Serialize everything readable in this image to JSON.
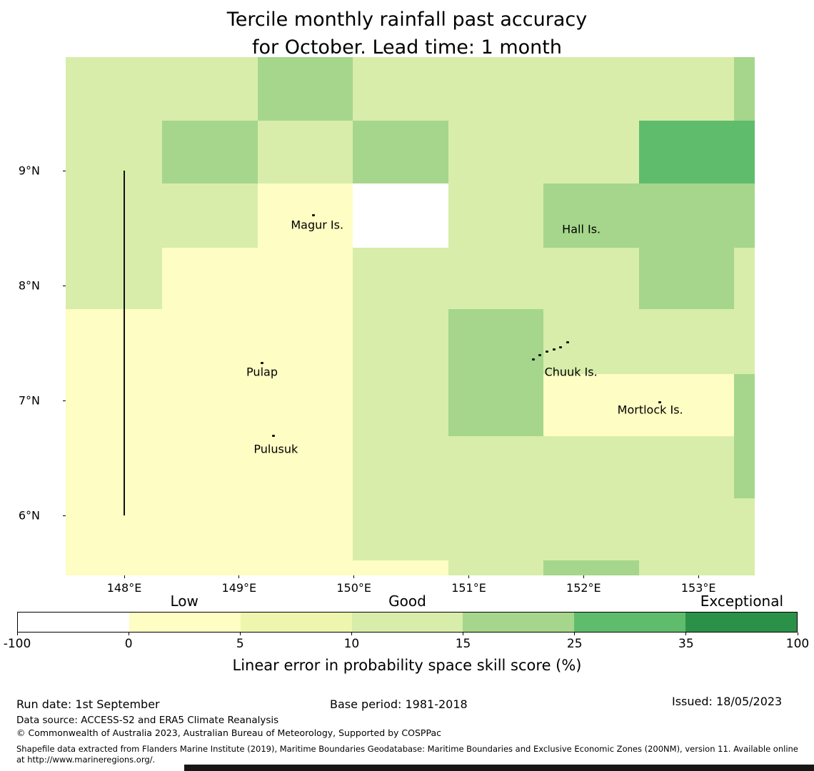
{
  "title": {
    "line1": "Tercile monthly rainfall past accuracy",
    "line2": "for October. Lead time: 1 month"
  },
  "chart_data": {
    "type": "heatmap",
    "x_axis": {
      "range": [
        147.49,
        153.49
      ],
      "tick_values": [
        148,
        149,
        150,
        151,
        152,
        153
      ],
      "tick_labels": [
        "148°E",
        "149°E",
        "150°E",
        "151°E",
        "152°E",
        "153°E"
      ]
    },
    "y_axis": {
      "range": [
        5.48,
        9.99
      ],
      "tick_values": [
        9,
        8,
        7,
        6
      ],
      "tick_labels": [
        "9°N",
        "8°N",
        "7°N",
        "6°N"
      ]
    },
    "palette": {
      "w": "#ffffff",
      "y": "#fefdc3",
      "yg": "#eef6ae",
      "lg": "#d8edaa",
      "mg": "#a5d68b",
      "g": "#5fbc6c",
      "dg": "#2b9148"
    },
    "category_values": {
      "w": "-100 to 0",
      "y": "0 to 5",
      "yg": "5 to 10",
      "lg": "10 to 15",
      "mg": "15 to 25",
      "g": "25 to 35",
      "dg": "35 to 100"
    },
    "lon_edges": [
      147.49,
      148.33,
      149.16,
      149.99,
      150.82,
      151.65,
      152.48,
      153.31,
      153.49
    ],
    "lat_edges": [
      9.99,
      9.44,
      8.89,
      8.33,
      7.8,
      7.23,
      6.69,
      6.15,
      5.61,
      5.48
    ],
    "grid": [
      [
        "lg",
        "lg",
        "mg",
        "lg",
        "lg",
        "lg",
        "lg",
        "mg"
      ],
      [
        "lg",
        "mg",
        "lg",
        "mg",
        "lg",
        "lg",
        "g",
        "g"
      ],
      [
        "lg",
        "lg",
        "y",
        "w",
        "lg",
        "mg",
        "mg",
        "mg"
      ],
      [
        "lg",
        "y",
        "y",
        "lg",
        "lg",
        "lg",
        "mg",
        "lg"
      ],
      [
        "y",
        "y",
        "y",
        "lg",
        "mg",
        "lg",
        "lg",
        "lg"
      ],
      [
        "y",
        "y",
        "y",
        "lg",
        "mg",
        "y",
        "y",
        "mg"
      ],
      [
        "y",
        "y",
        "y",
        "lg",
        "lg",
        "lg",
        "lg",
        "mg"
      ],
      [
        "y",
        "y",
        "y",
        "lg",
        "lg",
        "lg",
        "lg",
        "lg"
      ],
      [
        "y",
        "y",
        "y",
        "y",
        "lg",
        "mg",
        "lg",
        "lg"
      ]
    ],
    "boundary_line": {
      "lon": 148,
      "lat_from": 9,
      "lat_to": 6
    },
    "islands": [
      {
        "name": "Magur Is.",
        "lon": 149.68,
        "lat": 8.53
      },
      {
        "name": "Hall Is.",
        "lon": 151.98,
        "lat": 8.49
      },
      {
        "name": "Pulap",
        "lon": 149.2,
        "lat": 7.25
      },
      {
        "name": "Chuuk Is.",
        "lon": 151.89,
        "lat": 7.25
      },
      {
        "name": "Mortlock Is.",
        "lon": 152.58,
        "lat": 6.92
      },
      {
        "name": "Pulusuk",
        "lon": 149.32,
        "lat": 6.58
      }
    ],
    "island_marks": [
      {
        "lon": 149.65,
        "lat": 8.62
      },
      {
        "lon": 149.2,
        "lat": 7.33
      },
      {
        "lon": 149.3,
        "lat": 6.7
      },
      {
        "lon": 152.66,
        "lat": 6.99
      },
      {
        "lon": 151.56,
        "lat": 7.36
      },
      {
        "lon": 151.62,
        "lat": 7.4
      },
      {
        "lon": 151.68,
        "lat": 7.43
      },
      {
        "lon": 151.74,
        "lat": 7.45
      },
      {
        "lon": 151.8,
        "lat": 7.47
      },
      {
        "lon": 151.86,
        "lat": 7.51
      }
    ],
    "colorbar": {
      "tick_labels": [
        "-100",
        "0",
        "5",
        "10",
        "15",
        "25",
        "35",
        "100"
      ],
      "segments": [
        {
          "range": "-100 to 0",
          "color": "#ffffff"
        },
        {
          "range": "0 to 5",
          "color": "#fefdc3"
        },
        {
          "range": "5 to 10",
          "color": "#eef6ae"
        },
        {
          "range": "10 to 15",
          "color": "#d8edaa"
        },
        {
          "range": "15 to 25",
          "color": "#a5d68b"
        },
        {
          "range": "25 to 35",
          "color": "#5fbc6c"
        },
        {
          "range": "35 to 100",
          "color": "#2b9148"
        }
      ],
      "tiers": [
        {
          "label": "Low",
          "segment_index": 1
        },
        {
          "label": "Good",
          "segment_index": 3
        },
        {
          "label": "Exceptional",
          "segment_index": 6
        }
      ],
      "caption": "Linear error in probability space skill score (%)"
    }
  },
  "footer": {
    "run_date": "Run date: 1st September",
    "base_period": "Base period: 1981-2018",
    "issued": "Issued: 18/05/2023",
    "data_source": "Data source: ACCESS-S2 and ERA5 Climate Reanalysis",
    "copyright": "© Commonwealth of Australia 2023, Australian Bureau of Meteorology, Supported by COSPPac",
    "shapefile_note": "Shapefile data extracted from Flanders Marine Institute (2019), Maritime Boundaries Geodatabase: Maritime Boundaries and Exclusive Economic Zones (200NM), version 11. Available online at http://www.marineregions.org/."
  }
}
